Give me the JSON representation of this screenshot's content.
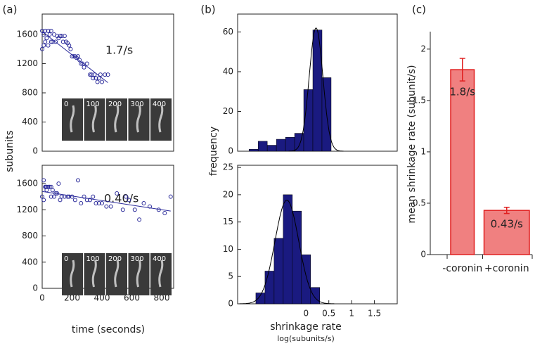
{
  "chart_data": [
    {
      "type": "scatter",
      "panel_label": "(a)",
      "ylabel": "subunits",
      "annotation": "1.7/s",
      "color": "#2a2a9a",
      "x": [
        0,
        10,
        20,
        30,
        40,
        50,
        60,
        70,
        80,
        100,
        110,
        120,
        130,
        140,
        150,
        160,
        170,
        180,
        190,
        200,
        210,
        220,
        230,
        240,
        250,
        260,
        270,
        280,
        300,
        320,
        330,
        340,
        350,
        360,
        370,
        380,
        390,
        400,
        420,
        440,
        20,
        10,
        0,
        40,
        60,
        90
      ],
      "y": [
        1650,
        1600,
        1650,
        1550,
        1650,
        1600,
        1650,
        1500,
        1600,
        1580,
        1550,
        1580,
        1580,
        1500,
        1580,
        1500,
        1480,
        1450,
        1400,
        1300,
        1300,
        1300,
        1280,
        1300,
        1250,
        1200,
        1200,
        1150,
        1200,
        1050,
        1050,
        1000,
        1050,
        1000,
        950,
        1000,
        1050,
        950,
        1050,
        1050,
        1500,
        1450,
        1400,
        1450,
        1500,
        1500
      ],
      "fit": {
        "x": [
          0,
          440
        ],
        "y": [
          1640,
          940
        ]
      },
      "xlim": [
        0,
        880
      ],
      "ylim": [
        0,
        1880
      ],
      "yticks": [
        0,
        400,
        800,
        1200,
        1600
      ],
      "inset_labels": [
        "0",
        "100",
        "200",
        "300",
        "400"
      ]
    },
    {
      "type": "scatter",
      "xlabel": "time (seconds)",
      "annotation": "0.40/s",
      "color": "#2a2a9a",
      "x": [
        0,
        10,
        20,
        25,
        30,
        40,
        50,
        60,
        70,
        80,
        90,
        100,
        110,
        130,
        150,
        170,
        180,
        200,
        220,
        240,
        260,
        280,
        300,
        320,
        340,
        360,
        380,
        400,
        430,
        460,
        500,
        540,
        560,
        580,
        620,
        650,
        680,
        720,
        780,
        820,
        860,
        10,
        30,
        60,
        120
      ],
      "y": [
        1400,
        1650,
        1550,
        1550,
        1550,
        1550,
        1550,
        1550,
        1500,
        1400,
        1450,
        1450,
        1600,
        1400,
        1400,
        1400,
        1400,
        1400,
        1350,
        1650,
        1300,
        1400,
        1350,
        1350,
        1400,
        1300,
        1300,
        1300,
        1250,
        1250,
        1450,
        1200,
        1400,
        1350,
        1200,
        1050,
        1300,
        1250,
        1200,
        1150,
        1400,
        1350,
        1500,
        1400,
        1350
      ],
      "fit": {
        "x": [
          0,
          860
        ],
        "y": [
          1480,
          1180
        ]
      },
      "xlim": [
        0,
        880
      ],
      "ylim": [
        0,
        1880
      ],
      "xticks": [
        0,
        200,
        400,
        600,
        800
      ],
      "yticks": [
        0,
        400,
        800,
        1200,
        1600
      ],
      "inset_labels": [
        "0",
        "100",
        "200",
        "300",
        "400"
      ]
    },
    {
      "type": "histogram",
      "panel_label": "(b)",
      "ylabel": "frequency",
      "color": "#1a1a80",
      "bins": [
        -1.25,
        -1.05,
        -0.85,
        -0.65,
        -0.45,
        -0.25,
        -0.05,
        0.15,
        0.35,
        0.55
      ],
      "counts": [
        1,
        5,
        3,
        6,
        7,
        9,
        31,
        61,
        37
      ],
      "fit": {
        "mean": 0.22,
        "sd": 0.15,
        "peak": 62
      },
      "xlim": [
        -1.5,
        2.0
      ],
      "ylim": [
        0,
        69
      ],
      "yticks": [
        0,
        20,
        40,
        60
      ]
    },
    {
      "type": "histogram",
      "xlabel": "shrinkage rate",
      "xlabel_sub": "log(subunits/s)",
      "color": "#1a1a80",
      "bins": [
        -1.1,
        -0.9,
        -0.7,
        -0.5,
        -0.3,
        -0.1,
        0.1,
        0.3
      ],
      "counts": [
        2,
        6,
        12,
        20,
        17,
        9,
        3
      ],
      "fit": {
        "mean": -0.42,
        "sd": 0.26,
        "peak": 19
      },
      "xlim": [
        -1.5,
        2.0
      ],
      "ylim": [
        0,
        25.4
      ],
      "xticks": [
        0,
        0.5,
        1,
        1.5
      ],
      "yticks": [
        0,
        5,
        10,
        15,
        20,
        25
      ]
    },
    {
      "type": "bar",
      "panel_label": "(c)",
      "ylabel": "mean shrinkage rate (subunit/s)",
      "categories": [
        "-coronin",
        "+coronin"
      ],
      "values": [
        1.8,
        0.43
      ],
      "value_labels": [
        "1.8/s",
        "0.43/s"
      ],
      "errors": [
        0.11,
        0.03
      ],
      "color": "#f08080",
      "edge_color": "#e02020",
      "ylim": [
        0,
        2.17
      ],
      "yticks": [
        0,
        0.5,
        1,
        1.5,
        2
      ]
    }
  ]
}
